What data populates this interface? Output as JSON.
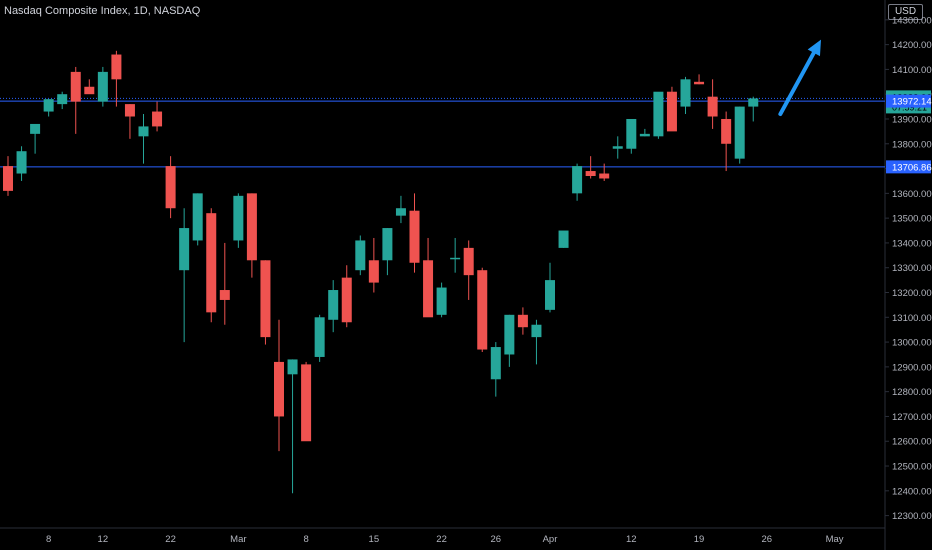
{
  "header": {
    "title": "Nasdaq Composite Index, 1D, NASDAQ",
    "currency": "USD"
  },
  "colors": {
    "background": "#000000",
    "up": "#26a69a",
    "down": "#ef5350",
    "axis_text": "#b2b5be",
    "level_line": "#2962ff",
    "dotted_line": "#2962ff",
    "arrow": "#2196f3"
  },
  "chart_data": {
    "type": "candlestick",
    "ylim": [
      12250,
      14380
    ],
    "y_ticks": [
      12300,
      12400,
      12500,
      12600,
      12700,
      12800,
      12900,
      13000,
      13100,
      13200,
      13300,
      13400,
      13500,
      13600,
      13700,
      13800,
      13900,
      14000,
      14100,
      14200,
      14300
    ],
    "y_tick_labels": [
      "12300.00",
      "12400.00",
      "12500.00",
      "12600.00",
      "12700.00",
      "12800.00",
      "12900.00",
      "13000.00",
      "13100.00",
      "13200.00",
      "13300.00",
      "13400.00",
      "13500.00",
      "13600.00",
      "13700.00",
      "13800.00",
      "13900.00",
      "14000.00",
      "14100.00",
      "14200.00",
      "14300.00"
    ],
    "x_ticks": [
      {
        "label": "8",
        "index": 3
      },
      {
        "label": "12",
        "index": 7
      },
      {
        "label": "22",
        "index": 12
      },
      {
        "label": "Mar",
        "index": 17
      },
      {
        "label": "8",
        "index": 22
      },
      {
        "label": "15",
        "index": 27
      },
      {
        "label": "22",
        "index": 32
      },
      {
        "label": "26",
        "index": 36
      },
      {
        "label": "Apr",
        "index": 40
      },
      {
        "label": "12",
        "index": 46
      },
      {
        "label": "19",
        "index": 51
      },
      {
        "label": "26",
        "index": 56
      },
      {
        "label": "May",
        "index": 61
      }
    ],
    "ohlc": [
      {
        "o": 13710,
        "h": 13750,
        "l": 13590,
        "c": 13610
      },
      {
        "o": 13680,
        "h": 13790,
        "l": 13650,
        "c": 13770
      },
      {
        "o": 13840,
        "h": 13870,
        "l": 13760,
        "c": 13880
      },
      {
        "o": 13930,
        "h": 13980,
        "l": 13910,
        "c": 13980
      },
      {
        "o": 13960,
        "h": 14010,
        "l": 13940,
        "c": 14000
      },
      {
        "o": 14090,
        "h": 14110,
        "l": 13840,
        "c": 13970
      },
      {
        "o": 14030,
        "h": 14060,
        "l": 14010,
        "c": 14000
      },
      {
        "o": 13970,
        "h": 14110,
        "l": 13950,
        "c": 14090
      },
      {
        "o": 14160,
        "h": 14175,
        "l": 13950,
        "c": 14060
      },
      {
        "o": 13960,
        "h": 13960,
        "l": 13820,
        "c": 13910
      },
      {
        "o": 13830,
        "h": 13920,
        "l": 13720,
        "c": 13870
      },
      {
        "o": 13930,
        "h": 13970,
        "l": 13850,
        "c": 13870
      },
      {
        "o": 13710,
        "h": 13750,
        "l": 13500,
        "c": 13540
      },
      {
        "o": 13290,
        "h": 13540,
        "l": 13000,
        "c": 13460
      },
      {
        "o": 13410,
        "h": 13600,
        "l": 13390,
        "c": 13600
      },
      {
        "o": 13520,
        "h": 13540,
        "l": 13080,
        "c": 13120
      },
      {
        "o": 13210,
        "h": 13400,
        "l": 13070,
        "c": 13170
      },
      {
        "o": 13410,
        "h": 13600,
        "l": 13380,
        "c": 13590
      },
      {
        "o": 13600,
        "h": 13600,
        "l": 13260,
        "c": 13330
      },
      {
        "o": 13330,
        "h": 13330,
        "l": 12990,
        "c": 13020
      },
      {
        "o": 12920,
        "h": 13090,
        "l": 12560,
        "c": 12700
      },
      {
        "o": 12870,
        "h": 12930,
        "l": 12390,
        "c": 12930
      },
      {
        "o": 12910,
        "h": 12920,
        "l": 12620,
        "c": 12600
      },
      {
        "o": 12940,
        "h": 13110,
        "l": 12920,
        "c": 13100
      },
      {
        "o": 13090,
        "h": 13250,
        "l": 13040,
        "c": 13210
      },
      {
        "o": 13260,
        "h": 13310,
        "l": 13060,
        "c": 13080
      },
      {
        "o": 13290,
        "h": 13430,
        "l": 13270,
        "c": 13410
      },
      {
        "o": 13330,
        "h": 13420,
        "l": 13200,
        "c": 13240
      },
      {
        "o": 13330,
        "h": 13460,
        "l": 13270,
        "c": 13460
      },
      {
        "o": 13510,
        "h": 13590,
        "l": 13480,
        "c": 13540
      },
      {
        "o": 13530,
        "h": 13600,
        "l": 13280,
        "c": 13320
      },
      {
        "o": 13330,
        "h": 13420,
        "l": 13110,
        "c": 13100
      },
      {
        "o": 13110,
        "h": 13240,
        "l": 13100,
        "c": 13220
      },
      {
        "o": 13340,
        "h": 13420,
        "l": 13280,
        "c": 13340
      },
      {
        "o": 13380,
        "h": 13410,
        "l": 13170,
        "c": 13270
      },
      {
        "o": 13290,
        "h": 13300,
        "l": 12960,
        "c": 12970
      },
      {
        "o": 12850,
        "h": 13000,
        "l": 12780,
        "c": 12980
      },
      {
        "o": 12950,
        "h": 13110,
        "l": 12900,
        "c": 13110
      },
      {
        "o": 13110,
        "h": 13140,
        "l": 13030,
        "c": 13060
      },
      {
        "o": 13020,
        "h": 13090,
        "l": 12910,
        "c": 13070
      },
      {
        "o": 13130,
        "h": 13320,
        "l": 13120,
        "c": 13250
      },
      {
        "o": 13380,
        "h": 13440,
        "l": 13380,
        "c": 13450
      },
      {
        "o": 13600,
        "h": 13720,
        "l": 13570,
        "c": 13710
      },
      {
        "o": 13690,
        "h": 13750,
        "l": 13660,
        "c": 13670
      },
      {
        "o": 13680,
        "h": 13720,
        "l": 13650,
        "c": 13660
      },
      {
        "o": 13780,
        "h": 13830,
        "l": 13740,
        "c": 13790
      },
      {
        "o": 13780,
        "h": 13880,
        "l": 13760,
        "c": 13900
      },
      {
        "o": 13830,
        "h": 13860,
        "l": 13830,
        "c": 13840
      },
      {
        "o": 13830,
        "h": 14000,
        "l": 13820,
        "c": 14010
      },
      {
        "o": 14010,
        "h": 14030,
        "l": 13870,
        "c": 13850
      },
      {
        "o": 13950,
        "h": 14070,
        "l": 13920,
        "c": 14060
      },
      {
        "o": 14050,
        "h": 14080,
        "l": 14040,
        "c": 14040
      },
      {
        "o": 13990,
        "h": 14060,
        "l": 13860,
        "c": 13910
      },
      {
        "o": 13900,
        "h": 13930,
        "l": 13690,
        "c": 13800
      },
      {
        "o": 13740,
        "h": 13950,
        "l": 13720,
        "c": 13950
      },
      {
        "o": 13950,
        "h": 13990,
        "l": 13890,
        "c": 13983
      }
    ],
    "levels": [
      {
        "value": 13972.14,
        "label": "13972.14",
        "style": "solid",
        "color": "#2962ff"
      },
      {
        "value": 13706.86,
        "label": "13706.86",
        "style": "solid",
        "color": "#2962ff"
      },
      {
        "value": 13983.06,
        "label": "13983.06",
        "style": "dotted",
        "color": "#2962ff"
      }
    ],
    "price_label": {
      "value": 13983.06,
      "label": "13983.06",
      "countdown": "07:59:21",
      "color": "#26a69a"
    },
    "arrow": {
      "from": [
        57,
        13920
      ],
      "to": [
        60,
        14220
      ],
      "color": "#2196f3"
    }
  }
}
